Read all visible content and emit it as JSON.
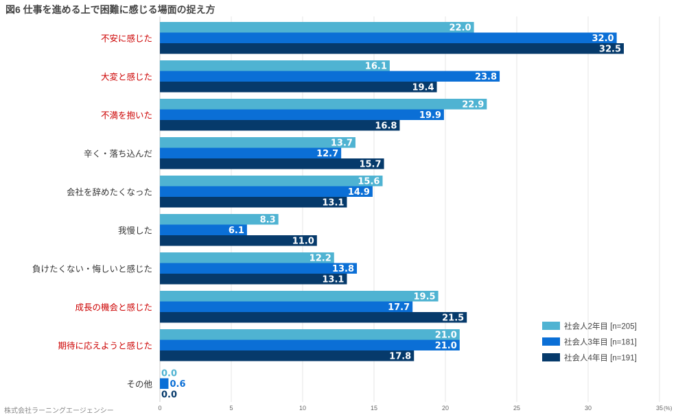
{
  "chart_data": {
    "type": "bar",
    "orientation": "horizontal",
    "title": "図6 仕事を進める上で困難に感じる場面の捉え方",
    "source": "株式会社ラーニングエージェンシー",
    "unit": "(%)",
    "xlim": [
      0,
      35
    ],
    "ticks": [
      "0",
      "5",
      "10",
      "15",
      "20",
      "25",
      "30",
      "35"
    ],
    "grid": true,
    "legend_position": "bottom-right",
    "categories": [
      "不安に感じた",
      "大変と感じた",
      "不満を抱いた",
      "辛く・落ち込んだ",
      "会社を辞めたくなった",
      "我慢した",
      "負けたくない・悔しいと感じた",
      "成長の機会と感じた",
      "期待に応えようと感じた",
      "その他"
    ],
    "highlighted_categories": [
      "不安に感じた",
      "大変と感じた",
      "不満を抱いた",
      "成長の機会と感じた",
      "期待に応えようと感じた"
    ],
    "series": [
      {
        "name": "社会人2年目 [n=205]",
        "color": "#4fb3d2",
        "values": [
          22.0,
          16.1,
          22.9,
          13.7,
          15.6,
          8.3,
          12.2,
          19.5,
          21.0,
          0.0
        ]
      },
      {
        "name": "社会人3年目 [n=181]",
        "color": "#0b6fd6",
        "values": [
          32.0,
          23.8,
          19.9,
          12.7,
          14.9,
          6.1,
          13.8,
          17.7,
          21.0,
          0.6
        ]
      },
      {
        "name": "社会人4年目 [n=191]",
        "color": "#063a6b",
        "values": [
          32.5,
          19.4,
          16.8,
          15.7,
          13.1,
          11.0,
          13.1,
          21.5,
          17.8,
          0.0
        ]
      }
    ]
  },
  "colors": {
    "highlight_text": "#cc0000",
    "normal_text": "#333333",
    "grid": "#e4e4e4",
    "bar_text": "#ffffff"
  }
}
